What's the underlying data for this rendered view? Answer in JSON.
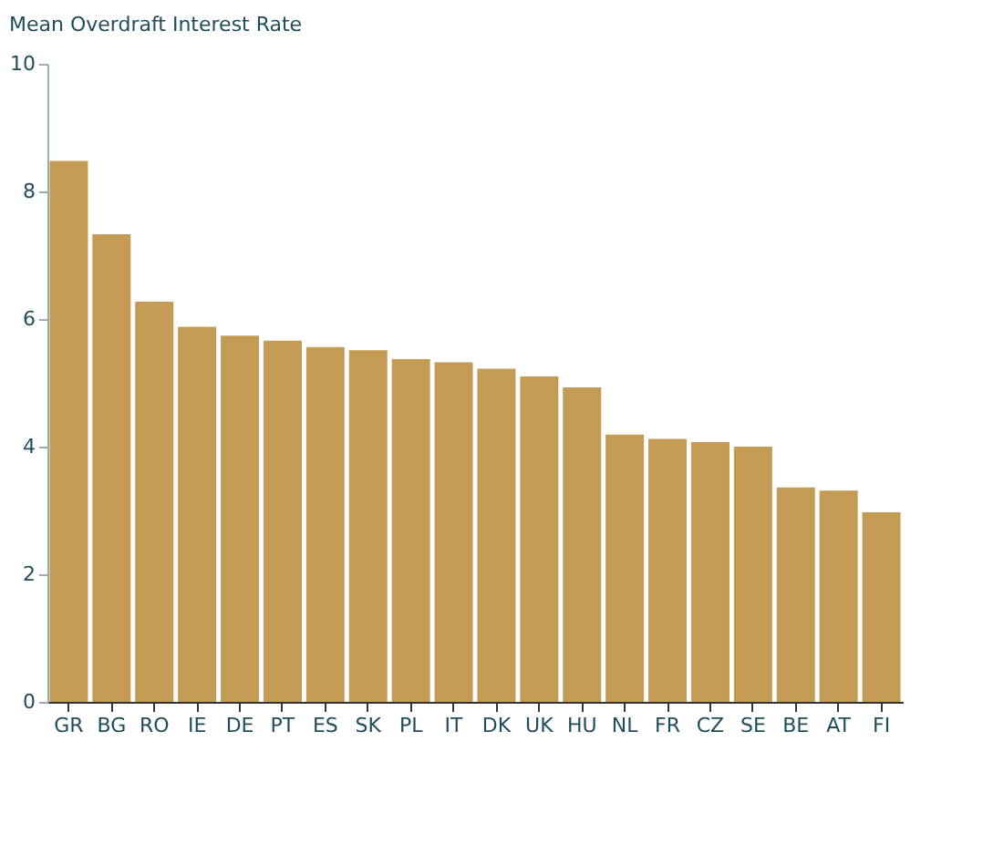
{
  "chart_data": {
    "type": "bar",
    "title": "Mean Overdraft Interest Rate",
    "categories": [
      "GR",
      "BG",
      "RO",
      "IE",
      "DE",
      "PT",
      "ES",
      "SK",
      "PL",
      "IT",
      "DK",
      "UK",
      "HU",
      "NL",
      "FR",
      "CZ",
      "SE",
      "BE",
      "AT",
      "FI"
    ],
    "values": [
      8.48,
      7.33,
      6.27,
      5.88,
      5.74,
      5.66,
      5.56,
      5.51,
      5.37,
      5.32,
      5.22,
      5.1,
      4.93,
      4.19,
      4.12,
      4.07,
      4.0,
      3.36,
      3.31,
      2.97
    ],
    "color": "#c49b55",
    "ylim": [
      0,
      10
    ],
    "yticks": [
      0,
      2,
      4,
      6,
      8,
      10
    ],
    "grid": false
  }
}
